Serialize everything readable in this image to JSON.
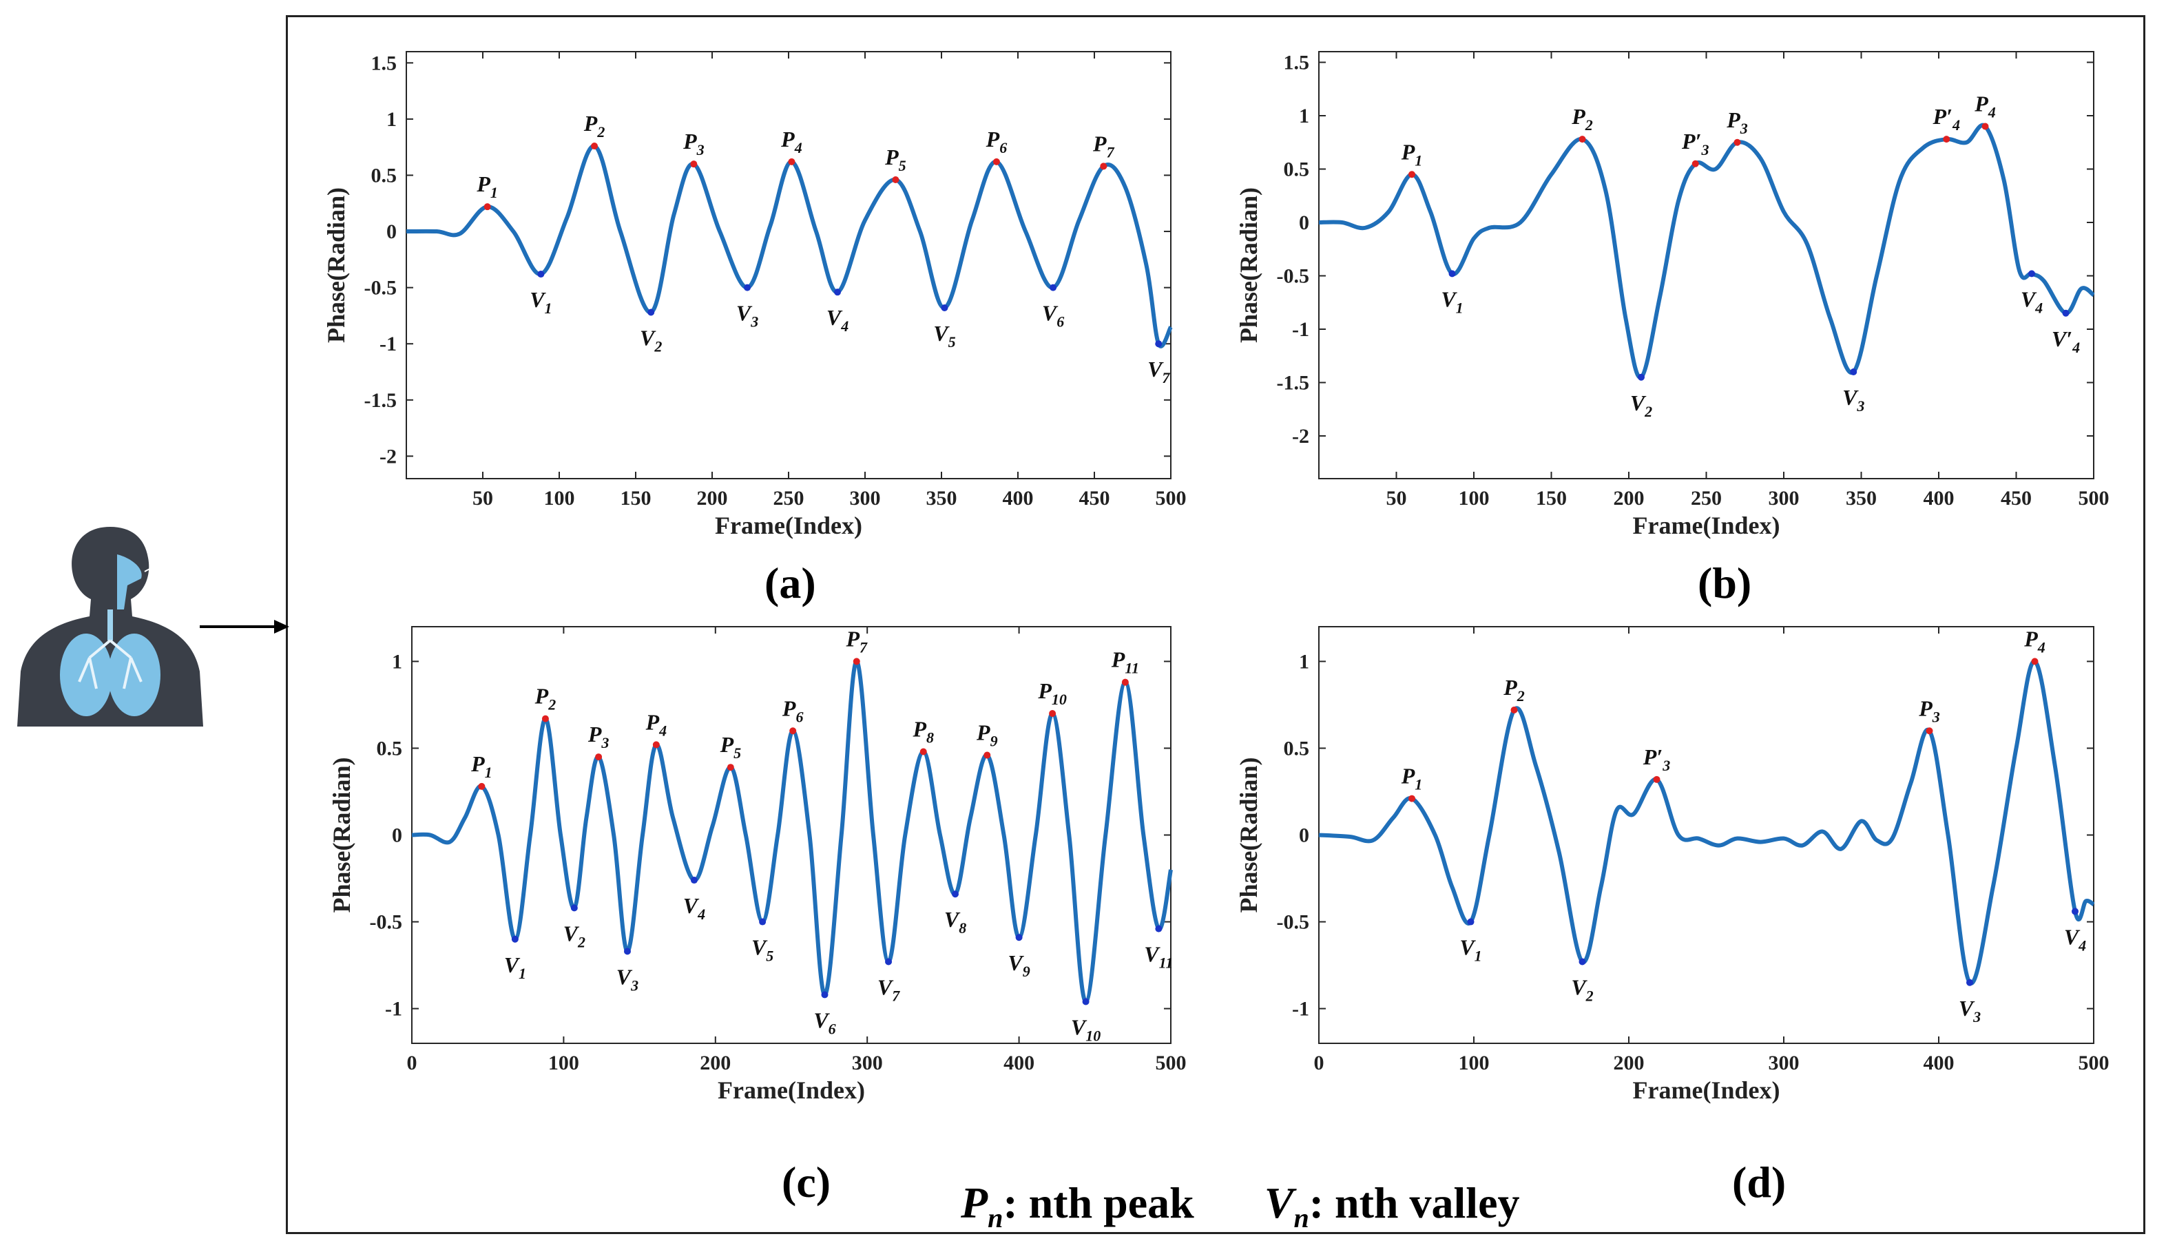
{
  "figure": {
    "legend": {
      "peak_symbol": "P",
      "peak_sub": "n",
      "peak_text": ": nth peak",
      "valley_symbol": "V",
      "valley_sub": "n",
      "valley_text": ": nth valley"
    },
    "colors": {
      "line": "#1f6fb9",
      "peak": "#e02020",
      "valley": "#1a35c8",
      "axis": "#262626"
    }
  },
  "chart_data": [
    {
      "id": "a",
      "caption": "(a)",
      "type": "line",
      "xlabel": "Frame(Index)",
      "ylabel": "Phase(Radian)",
      "xlim": [
        0,
        500
      ],
      "ylim": [
        -2.2,
        1.6
      ],
      "xticks": [
        50,
        100,
        150,
        200,
        250,
        300,
        350,
        400,
        450,
        500
      ],
      "yticks": [
        1.5,
        1,
        0.5,
        0,
        -0.5,
        -1,
        -1.5,
        -2
      ],
      "x": [
        0,
        20,
        35,
        53,
        70,
        88,
        105,
        123,
        140,
        160,
        175,
        188,
        205,
        223,
        238,
        252,
        268,
        282,
        300,
        320,
        336,
        352,
        370,
        386,
        405,
        423,
        440,
        456,
        470,
        484,
        492,
        500
      ],
      "y": [
        0,
        0,
        -0.02,
        0.22,
        0.0,
        -0.38,
        0.12,
        0.76,
        0.0,
        -0.72,
        0.15,
        0.6,
        0.0,
        -0.5,
        0.05,
        0.62,
        0.0,
        -0.54,
        0.1,
        0.46,
        0.0,
        -0.68,
        0.1,
        0.62,
        0.0,
        -0.5,
        0.1,
        0.58,
        0.4,
        -0.3,
        -1.0,
        -0.85
      ],
      "peaks": [
        {
          "label": "P",
          "sub": "1",
          "x": 53,
          "y": 0.22
        },
        {
          "label": "P",
          "sub": "2",
          "x": 123,
          "y": 0.76
        },
        {
          "label": "P",
          "sub": "3",
          "x": 188,
          "y": 0.6
        },
        {
          "label": "P",
          "sub": "4",
          "x": 252,
          "y": 0.62
        },
        {
          "label": "P",
          "sub": "5",
          "x": 320,
          "y": 0.46
        },
        {
          "label": "P",
          "sub": "6",
          "x": 386,
          "y": 0.62
        },
        {
          "label": "P",
          "sub": "7",
          "x": 456,
          "y": 0.58
        }
      ],
      "valleys": [
        {
          "label": "V",
          "sub": "1",
          "x": 88,
          "y": -0.38
        },
        {
          "label": "V",
          "sub": "2",
          "x": 160,
          "y": -0.72
        },
        {
          "label": "V",
          "sub": "3",
          "x": 223,
          "y": -0.5
        },
        {
          "label": "V",
          "sub": "4",
          "x": 282,
          "y": -0.54
        },
        {
          "label": "V",
          "sub": "5",
          "x": 352,
          "y": -0.68
        },
        {
          "label": "V",
          "sub": "6",
          "x": 423,
          "y": -0.5
        },
        {
          "label": "V",
          "sub": "7",
          "x": 492,
          "y": -1.0
        }
      ]
    },
    {
      "id": "b",
      "caption": "(b)",
      "type": "line",
      "xlabel": "Frame(Index)",
      "ylabel": "Phase(Radian)",
      "xlim": [
        0,
        500
      ],
      "ylim": [
        -2.4,
        1.6
      ],
      "xticks": [
        50,
        100,
        150,
        200,
        250,
        300,
        350,
        400,
        450,
        500
      ],
      "yticks": [
        1.5,
        1,
        0.5,
        0,
        -0.5,
        -1,
        -1.5,
        -2
      ],
      "x": [
        0,
        15,
        30,
        45,
        60,
        72,
        86,
        100,
        110,
        130,
        150,
        170,
        185,
        198,
        208,
        220,
        232,
        243,
        256,
        270,
        285,
        300,
        315,
        330,
        345,
        360,
        375,
        390,
        405,
        418,
        430,
        442,
        452,
        460,
        468,
        482,
        492,
        500
      ],
      "y": [
        0,
        0,
        -0.05,
        0.1,
        0.45,
        0.1,
        -0.48,
        -0.15,
        -0.05,
        0.0,
        0.45,
        0.78,
        0.3,
        -0.9,
        -1.45,
        -0.7,
        0.2,
        0.55,
        0.5,
        0.75,
        0.6,
        0.1,
        -0.2,
        -0.9,
        -1.4,
        -0.5,
        0.4,
        0.7,
        0.78,
        0.75,
        0.9,
        0.4,
        -0.45,
        -0.48,
        -0.55,
        -0.85,
        -0.62,
        -0.68
      ],
      "peaks": [
        {
          "label": "P",
          "sub": "1",
          "x": 60,
          "y": 0.45
        },
        {
          "label": "P",
          "sub": "2",
          "x": 170,
          "y": 0.78
        },
        {
          "label": "P′",
          "sub": "3",
          "x": 243,
          "y": 0.55
        },
        {
          "label": "P",
          "sub": "3",
          "x": 270,
          "y": 0.75
        },
        {
          "label": "P′",
          "sub": "4",
          "x": 405,
          "y": 0.78
        },
        {
          "label": "P",
          "sub": "4",
          "x": 430,
          "y": 0.9
        }
      ],
      "valleys": [
        {
          "label": "V",
          "sub": "1",
          "x": 86,
          "y": -0.48
        },
        {
          "label": "V",
          "sub": "2",
          "x": 208,
          "y": -1.45
        },
        {
          "label": "V",
          "sub": "3",
          "x": 345,
          "y": -1.4
        },
        {
          "label": "V",
          "sub": "4",
          "x": 460,
          "y": -0.48
        },
        {
          "label": "V′",
          "sub": "4",
          "x": 482,
          "y": -0.85
        }
      ]
    },
    {
      "id": "c",
      "caption": "(c)",
      "type": "line",
      "xlabel": "Frame(Index)",
      "ylabel": "Phase(Radian)",
      "xlim": [
        0,
        500
      ],
      "ylim": [
        -1.2,
        1.2
      ],
      "xticks": [
        0,
        100,
        200,
        300,
        400,
        500
      ],
      "yticks": [
        1,
        0.5,
        0,
        -0.5,
        -1
      ],
      "x": [
        0,
        12,
        25,
        35,
        46,
        57,
        68,
        78,
        88,
        98,
        107,
        115,
        123,
        133,
        142,
        152,
        161,
        172,
        186,
        198,
        210,
        220,
        231,
        241,
        251,
        262,
        272,
        283,
        293,
        304,
        314,
        325,
        337,
        348,
        358,
        368,
        379,
        390,
        400,
        411,
        422,
        433,
        444,
        457,
        470,
        482,
        492,
        500
      ],
      "y": [
        0,
        0,
        -0.04,
        0.1,
        0.28,
        0.0,
        -0.6,
        0.0,
        0.67,
        0.0,
        -0.42,
        0.1,
        0.45,
        0.0,
        -0.67,
        0.0,
        0.52,
        0.1,
        -0.26,
        0.05,
        0.39,
        0.0,
        -0.5,
        0.0,
        0.6,
        0.0,
        -0.92,
        0.0,
        1.0,
        0.0,
        -0.73,
        0.0,
        0.48,
        0.0,
        -0.34,
        0.1,
        0.46,
        0.0,
        -0.59,
        0.0,
        0.7,
        0.0,
        -0.96,
        0.0,
        0.88,
        0.0,
        -0.54,
        -0.2
      ],
      "peaks": [
        {
          "label": "P",
          "sub": "1",
          "x": 46,
          "y": 0.28
        },
        {
          "label": "P",
          "sub": "2",
          "x": 88,
          "y": 0.67
        },
        {
          "label": "P",
          "sub": "3",
          "x": 123,
          "y": 0.45
        },
        {
          "label": "P",
          "sub": "4",
          "x": 161,
          "y": 0.52
        },
        {
          "label": "P",
          "sub": "5",
          "x": 210,
          "y": 0.39
        },
        {
          "label": "P",
          "sub": "6",
          "x": 251,
          "y": 0.6
        },
        {
          "label": "P",
          "sub": "7",
          "x": 293,
          "y": 1.0
        },
        {
          "label": "P",
          "sub": "8",
          "x": 337,
          "y": 0.48
        },
        {
          "label": "P",
          "sub": "9",
          "x": 379,
          "y": 0.46
        },
        {
          "label": "P",
          "sub": "10",
          "x": 422,
          "y": 0.7
        },
        {
          "label": "P",
          "sub": "11",
          "x": 470,
          "y": 0.88
        }
      ],
      "valleys": [
        {
          "label": "V",
          "sub": "1",
          "x": 68,
          "y": -0.6
        },
        {
          "label": "V",
          "sub": "2",
          "x": 107,
          "y": -0.42
        },
        {
          "label": "V",
          "sub": "3",
          "x": 142,
          "y": -0.67
        },
        {
          "label": "V",
          "sub": "4",
          "x": 186,
          "y": -0.26
        },
        {
          "label": "V",
          "sub": "5",
          "x": 231,
          "y": -0.5
        },
        {
          "label": "V",
          "sub": "6",
          "x": 272,
          "y": -0.92
        },
        {
          "label": "V",
          "sub": "7",
          "x": 314,
          "y": -0.73
        },
        {
          "label": "V",
          "sub": "8",
          "x": 358,
          "y": -0.34
        },
        {
          "label": "V",
          "sub": "9",
          "x": 400,
          "y": -0.59
        },
        {
          "label": "V",
          "sub": "10",
          "x": 444,
          "y": -0.96
        },
        {
          "label": "V",
          "sub": "11",
          "x": 492,
          "y": -0.54
        }
      ]
    },
    {
      "id": "d",
      "caption": "(d)",
      "type": "line",
      "xlabel": "Frame(Index)",
      "ylabel": "Phase(Radian)",
      "xlim": [
        0,
        500
      ],
      "ylim": [
        -1.2,
        1.2
      ],
      "xticks": [
        0,
        100,
        200,
        300,
        400,
        500
      ],
      "yticks": [
        1,
        0.5,
        0,
        -0.5,
        -1
      ],
      "x": [
        0,
        20,
        35,
        48,
        60,
        75,
        86,
        98,
        110,
        126,
        140,
        155,
        170,
        182,
        192,
        203,
        218,
        232,
        245,
        258,
        270,
        285,
        300,
        312,
        325,
        337,
        350,
        360,
        370,
        382,
        394,
        406,
        420,
        435,
        450,
        462,
        475,
        488,
        495,
        500
      ],
      "y": [
        0,
        -0.01,
        -0.03,
        0.1,
        0.21,
        0.0,
        -0.3,
        -0.5,
        0.0,
        0.72,
        0.4,
        -0.1,
        -0.73,
        -0.3,
        0.14,
        0.12,
        0.32,
        0.0,
        -0.02,
        -0.06,
        -0.02,
        -0.04,
        -0.02,
        -0.06,
        0.02,
        -0.08,
        0.08,
        -0.03,
        -0.02,
        0.3,
        0.6,
        0.0,
        -0.85,
        -0.3,
        0.5,
        1.0,
        0.4,
        -0.44,
        -0.38,
        -0.4
      ],
      "peaks": [
        {
          "label": "P",
          "sub": "1",
          "x": 60,
          "y": 0.21
        },
        {
          "label": "P",
          "sub": "2",
          "x": 126,
          "y": 0.72
        },
        {
          "label": "P′",
          "sub": "3",
          "x": 218,
          "y": 0.32
        },
        {
          "label": "P",
          "sub": "3",
          "x": 394,
          "y": 0.6
        },
        {
          "label": "P",
          "sub": "4",
          "x": 462,
          "y": 1.0
        }
      ],
      "valleys": [
        {
          "label": "V",
          "sub": "1",
          "x": 98,
          "y": -0.5
        },
        {
          "label": "V",
          "sub": "2",
          "x": 170,
          "y": -0.73
        },
        {
          "label": "V",
          "sub": "3",
          "x": 420,
          "y": -0.85
        },
        {
          "label": "V",
          "sub": "4",
          "x": 488,
          "y": -0.44
        }
      ]
    }
  ]
}
